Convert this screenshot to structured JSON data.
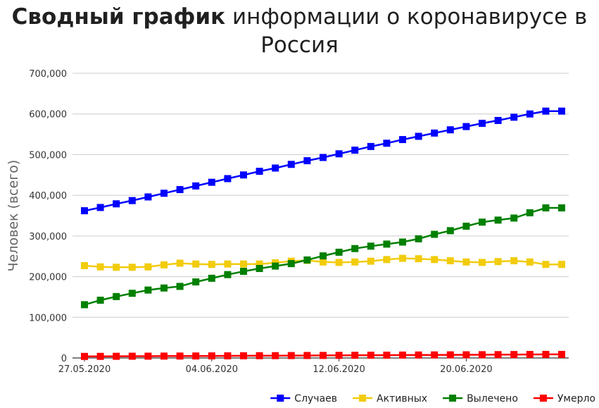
{
  "title_bold": "Сводный график",
  "title_rest": " информации о коронавирусе в Россия",
  "chart_data": {
    "type": "line",
    "title": "Сводный график информации о коронавирусе в Россия",
    "xlabel": "",
    "ylabel": "Человек (всего)",
    "ylim": [
      0,
      700000
    ],
    "y_ticks": [
      0,
      100000,
      200000,
      300000,
      400000,
      500000,
      600000,
      700000
    ],
    "y_tick_labels": [
      "0",
      "100,000",
      "200,000",
      "300,000",
      "400,000",
      "500,000",
      "600,000",
      "700,000"
    ],
    "x": [
      "27.05.2020",
      "28.05.2020",
      "29.05.2020",
      "30.05.2020",
      "31.05.2020",
      "01.06.2020",
      "02.06.2020",
      "03.06.2020",
      "04.06.2020",
      "05.06.2020",
      "06.06.2020",
      "07.06.2020",
      "08.06.2020",
      "09.06.2020",
      "10.06.2020",
      "11.06.2020",
      "12.06.2020",
      "13.06.2020",
      "14.06.2020",
      "15.06.2020",
      "16.06.2020",
      "17.06.2020",
      "18.06.2020",
      "19.06.2020",
      "20.06.2020",
      "21.06.2020",
      "22.06.2020",
      "23.06.2020",
      "24.06.2020",
      "25.06.2020",
      "26.06.2020"
    ],
    "x_tick_labels": [
      "27.05.2020",
      "04.06.2020",
      "12.06.2020",
      "20.06.2020"
    ],
    "grid": true,
    "legend_position": "bottom-right",
    "series": [
      {
        "name": "Случаев",
        "color": "#0000ff",
        "values": [
          362000,
          370000,
          379000,
          387000,
          396000,
          405000,
          414000,
          423000,
          432000,
          441000,
          450000,
          459000,
          467000,
          476000,
          485000,
          493000,
          502000,
          511000,
          520000,
          528000,
          537000,
          545000,
          553000,
          561000,
          569000,
          577000,
          584000,
          592000,
          600000,
          607000,
          607000
        ]
      },
      {
        "name": "Активных",
        "color": "#f2cc0c",
        "values": [
          227000,
          224000,
          223000,
          223000,
          224000,
          229000,
          233000,
          231000,
          230000,
          231000,
          231000,
          231000,
          234000,
          238000,
          240000,
          236000,
          235000,
          236000,
          238000,
          242000,
          245000,
          244000,
          242000,
          239000,
          236000,
          235000,
          237000,
          239000,
          236000,
          230000,
          230000
        ]
      },
      {
        "name": "Вылечено",
        "color": "#008000",
        "values": [
          131000,
          142000,
          151000,
          159000,
          167000,
          172000,
          176000,
          187000,
          196000,
          205000,
          213000,
          220000,
          226000,
          232000,
          241000,
          251000,
          260000,
          269000,
          275000,
          280000,
          285000,
          293000,
          304000,
          313000,
          324000,
          334000,
          339000,
          344000,
          357000,
          369000,
          369000
        ]
      },
      {
        "name": "Умерло",
        "color": "#ff0000",
        "values": [
          3800,
          3900,
          4100,
          4300,
          4400,
          4600,
          4700,
          4900,
          5100,
          5200,
          5400,
          5600,
          5700,
          5900,
          6100,
          6200,
          6400,
          6600,
          6800,
          6900,
          7100,
          7300,
          7500,
          7700,
          7800,
          8000,
          8200,
          8400,
          8600,
          8800,
          8800
        ]
      }
    ]
  }
}
